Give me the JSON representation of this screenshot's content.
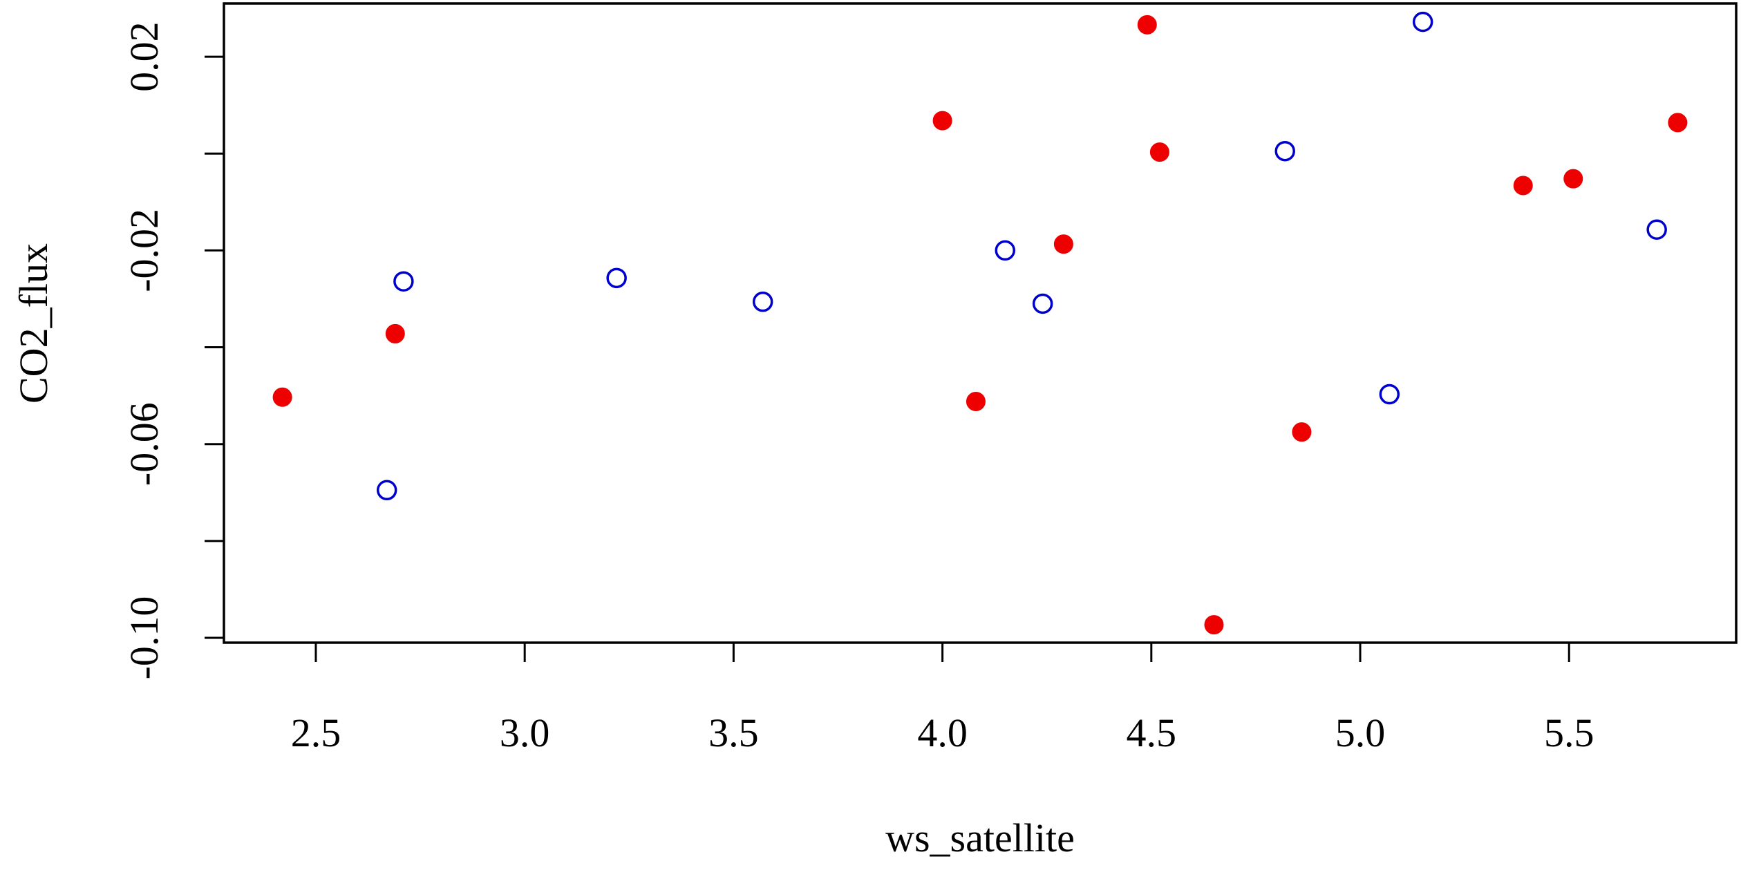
{
  "chart_data": {
    "type": "scatter",
    "title": "",
    "xlabel": "ws_satellite",
    "ylabel": "CO2_flux",
    "xlim": [
      2.28,
      5.9
    ],
    "ylim": [
      -0.101,
      0.031
    ],
    "x_ticks": [
      2.5,
      3.0,
      3.5,
      4.0,
      4.5,
      5.0,
      5.5
    ],
    "x_tick_labels": [
      "2.5",
      "3.0",
      "3.5",
      "4.0",
      "4.5",
      "5.0",
      "5.5"
    ],
    "y_ticks": [
      -0.1,
      -0.08,
      -0.06,
      -0.04,
      -0.02,
      0.0,
      0.02
    ],
    "y_tick_labels": [
      "-0.10",
      "",
      "-0.06",
      "",
      "-0.02",
      "",
      "0.02"
    ],
    "grid": false,
    "legend": "none",
    "series": [
      {
        "marker": "filled-circle",
        "color": "#ee0000",
        "points": [
          {
            "x": 2.42,
            "y": -0.0503
          },
          {
            "x": 2.69,
            "y": -0.0372
          },
          {
            "x": 4.0,
            "y": 0.0068
          },
          {
            "x": 4.08,
            "y": -0.0512
          },
          {
            "x": 4.29,
            "y": -0.0187
          },
          {
            "x": 4.49,
            "y": 0.0266
          },
          {
            "x": 4.52,
            "y": 0.0003
          },
          {
            "x": 4.65,
            "y": -0.0973
          },
          {
            "x": 4.86,
            "y": -0.0575
          },
          {
            "x": 5.39,
            "y": -0.0066
          },
          {
            "x": 5.51,
            "y": -0.0052
          },
          {
            "x": 5.76,
            "y": 0.0064
          }
        ]
      },
      {
        "marker": "open-circle",
        "color": "#0000cc",
        "points": [
          {
            "x": 2.67,
            "y": -0.0695
          },
          {
            "x": 2.71,
            "y": -0.0264
          },
          {
            "x": 3.22,
            "y": -0.0257
          },
          {
            "x": 3.57,
            "y": -0.0306
          },
          {
            "x": 4.15,
            "y": -0.02
          },
          {
            "x": 4.24,
            "y": -0.031
          },
          {
            "x": 4.82,
            "y": 0.0005
          },
          {
            "x": 5.07,
            "y": -0.0497
          },
          {
            "x": 5.15,
            "y": 0.0272
          },
          {
            "x": 5.71,
            "y": -0.0157
          }
        ]
      }
    ]
  }
}
